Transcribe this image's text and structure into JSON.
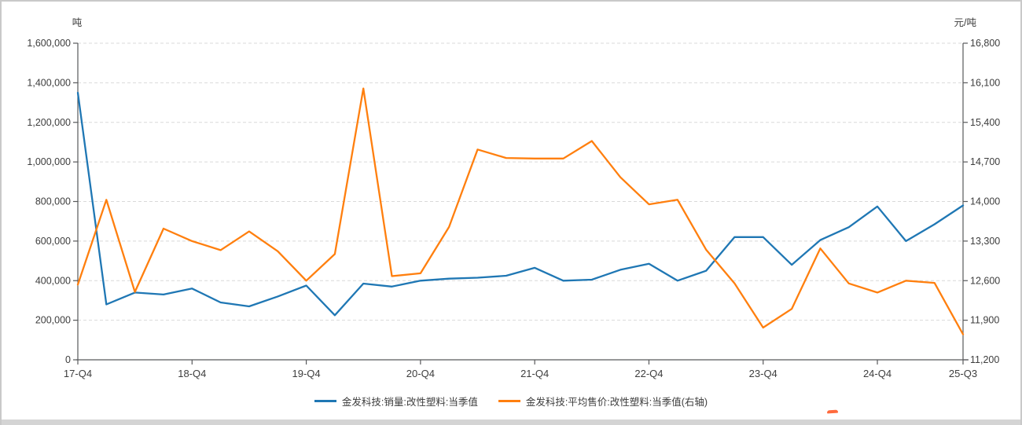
{
  "window": {
    "background": "#ffffff",
    "frame_color": "#c9c9c9",
    "bottom_bar_color": "#d4d4d4"
  },
  "axes": {
    "left_unit": "吨",
    "right_unit": "元/吨",
    "left_tick_labels": [
      "0",
      "200,000",
      "400,000",
      "600,000",
      "800,000",
      "1,000,000",
      "1,200,000",
      "1,400,000",
      "1,600,000"
    ],
    "right_tick_labels": [
      "11,200",
      "11,900",
      "12,600",
      "13,300",
      "14,000",
      "14,700",
      "15,400",
      "16,100",
      "16,800"
    ],
    "x_tick_labels": [
      "17-Q4",
      "18-Q4",
      "19-Q4",
      "20-Q4",
      "21-Q4",
      "22-Q4",
      "23-Q4",
      "24-Q4",
      "25-Q3"
    ]
  },
  "legend": {
    "items": [
      {
        "label": "金发科技:销量:改性塑料:当季值",
        "color": "#1f77b4"
      },
      {
        "label": "金发科技:平均售价:改性塑料:当季值(右轴)",
        "color": "#ff7f0e"
      }
    ]
  },
  "chart_data": {
    "type": "line",
    "x": [
      "17-Q4",
      "18-Q1",
      "18-Q2",
      "18-Q3",
      "18-Q4",
      "19-Q1",
      "19-Q2",
      "19-Q3",
      "19-Q4",
      "20-Q1",
      "20-Q2",
      "20-Q3",
      "20-Q4",
      "21-Q1",
      "21-Q2",
      "21-Q3",
      "21-Q4",
      "22-Q1",
      "22-Q2",
      "22-Q3",
      "22-Q4",
      "23-Q1",
      "23-Q2",
      "23-Q3",
      "23-Q4",
      "24-Q1",
      "24-Q2",
      "24-Q3",
      "24-Q4",
      "25-Q1",
      "25-Q2",
      "25-Q3"
    ],
    "x_tick_indices": [
      0,
      4,
      8,
      12,
      16,
      20,
      24,
      28,
      31
    ],
    "series": [
      {
        "name": "金发科技:销量:改性塑料:当季值",
        "axis": "left",
        "color": "#1f77b4",
        "values": [
          1350000,
          280000,
          340000,
          330000,
          360000,
          290000,
          270000,
          320000,
          375000,
          225000,
          385000,
          370000,
          400000,
          410000,
          415000,
          425000,
          465000,
          400000,
          405000,
          455000,
          485000,
          400000,
          450000,
          620000,
          620000,
          480000,
          605000,
          670000,
          775000,
          600000,
          685000,
          780000
        ]
      },
      {
        "name": "金发科技:平均售价:改性塑料:当季值(右轴)",
        "axis": "right",
        "color": "#ff7f0e",
        "values": [
          12530,
          14030,
          12400,
          13520,
          13300,
          13140,
          13470,
          13120,
          12600,
          13070,
          16000,
          12680,
          12730,
          13550,
          14920,
          14770,
          14760,
          14760,
          15070,
          14430,
          13950,
          14030,
          13150,
          12550,
          11770,
          12100,
          13170,
          12550,
          12390,
          12600,
          12560,
          11650
        ]
      }
    ],
    "left_axis": {
      "label": "吨",
      "min": 0,
      "max": 1600000,
      "step": 200000
    },
    "right_axis": {
      "label": "元/吨",
      "min": 11200,
      "max": 16800,
      "step": 700
    },
    "grid": "horizontal-dashed",
    "legend_position": "bottom-center",
    "title": ""
  }
}
